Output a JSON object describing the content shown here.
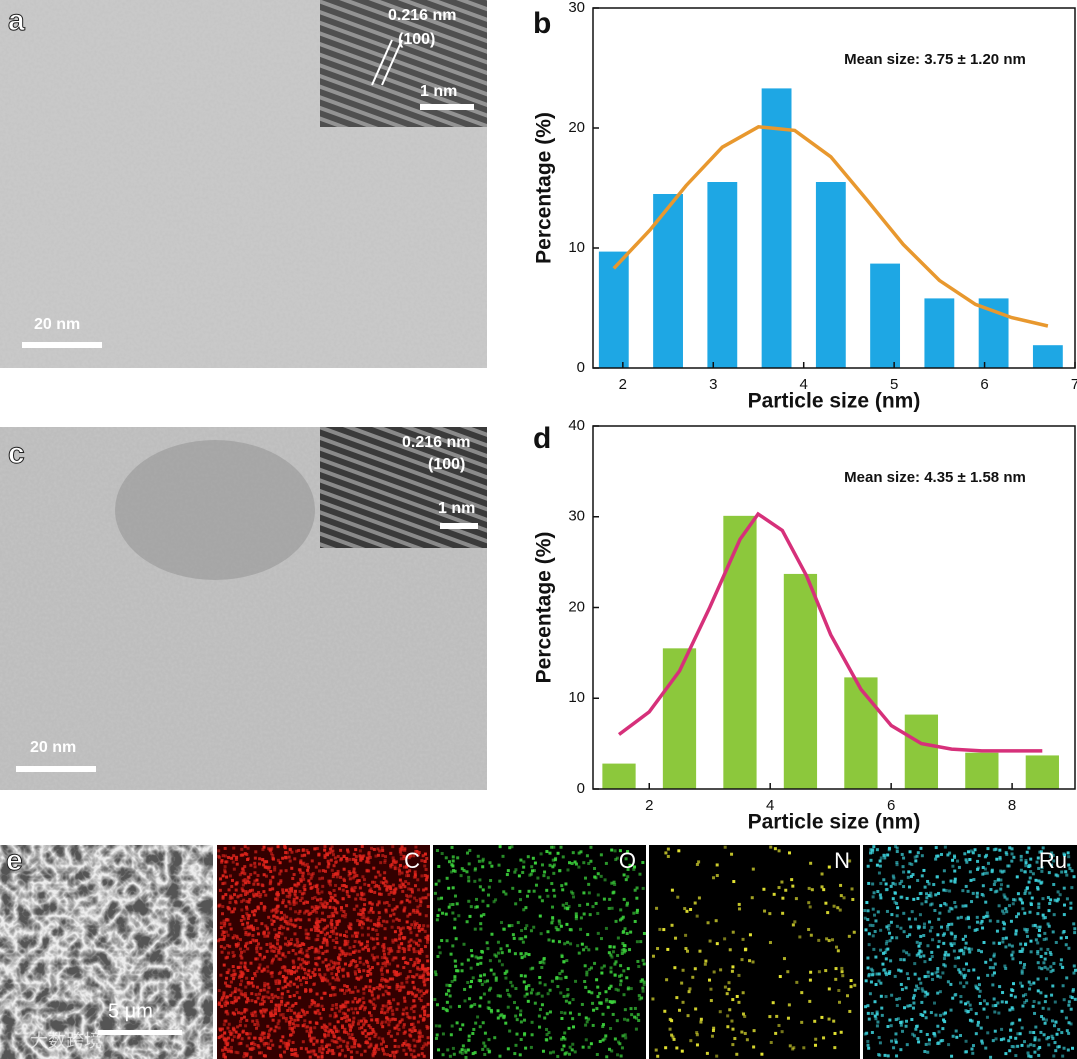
{
  "panels": {
    "a": {
      "label": "a",
      "d_spacing": "0.216 nm",
      "plane": "(100)",
      "inset_scale": "1 nm",
      "scale": "20 nm"
    },
    "c": {
      "label": "c",
      "d_spacing": "0.216 nm",
      "plane": "(100)",
      "inset_scale": "1 nm",
      "scale": "20 nm"
    },
    "e": {
      "label": "e",
      "scale": "5 μm",
      "maps": [
        "C",
        "O",
        "N",
        "Ru"
      ]
    },
    "watermark": "大数跨境"
  },
  "chart_data": [
    {
      "type": "bar",
      "label": "b",
      "annotation": "Mean size: 3.75 ± 1.20 nm",
      "x_label": "Particle size (nm)",
      "y_label": "Percentage (%)",
      "x": [
        1.9,
        2.5,
        3.1,
        3.7,
        4.3,
        4.9,
        5.5,
        6.1,
        6.7
      ],
      "values": [
        9.7,
        14.5,
        15.5,
        23.3,
        15.5,
        8.7,
        5.8,
        5.8,
        1.9
      ],
      "color": "#1ea7e4",
      "fit_curve": {
        "color": "#e8982e",
        "x": [
          1.9,
          2.3,
          2.7,
          3.1,
          3.5,
          3.9,
          4.3,
          4.7,
          5.1,
          5.5,
          5.9,
          6.3,
          6.7
        ],
        "values": [
          8.3,
          11.5,
          15.2,
          18.4,
          20.1,
          19.8,
          17.6,
          14.0,
          10.3,
          7.3,
          5.3,
          4.2,
          3.5
        ]
      },
      "xlim": [
        1.67,
        7.0
      ],
      "xticks": [
        2,
        3,
        4,
        5,
        6,
        7
      ],
      "ylim": [
        0,
        30
      ],
      "yticks": [
        0,
        10,
        20,
        30
      ]
    },
    {
      "type": "bar",
      "label": "d",
      "annotation": "Mean size: 4.35 ± 1.58 nm",
      "x_label": "Particle size (nm)",
      "y_label": "Percentage (%)",
      "x": [
        1.5,
        2.5,
        3.5,
        4.5,
        5.5,
        6.5,
        7.5,
        8.5
      ],
      "values": [
        2.8,
        15.5,
        30.1,
        23.7,
        12.3,
        8.2,
        4.0,
        3.7
      ],
      "color": "#8cc83c",
      "fit_curve": {
        "color": "#d6307a",
        "x": [
          1.5,
          2.0,
          2.5,
          3.0,
          3.5,
          3.8,
          4.2,
          4.6,
          5.0,
          5.5,
          6.0,
          6.5,
          7.0,
          7.5,
          8.5
        ],
        "values": [
          6.0,
          8.5,
          13.0,
          20.0,
          27.5,
          30.3,
          28.5,
          23.5,
          17.0,
          11.0,
          7.0,
          5.0,
          4.4,
          4.2,
          4.2
        ]
      },
      "xlim": [
        1.07,
        9.04
      ],
      "xticks": [
        2,
        4,
        6,
        8
      ],
      "ylim": [
        0,
        40
      ],
      "yticks": [
        0,
        10,
        20,
        30,
        40
      ]
    }
  ]
}
